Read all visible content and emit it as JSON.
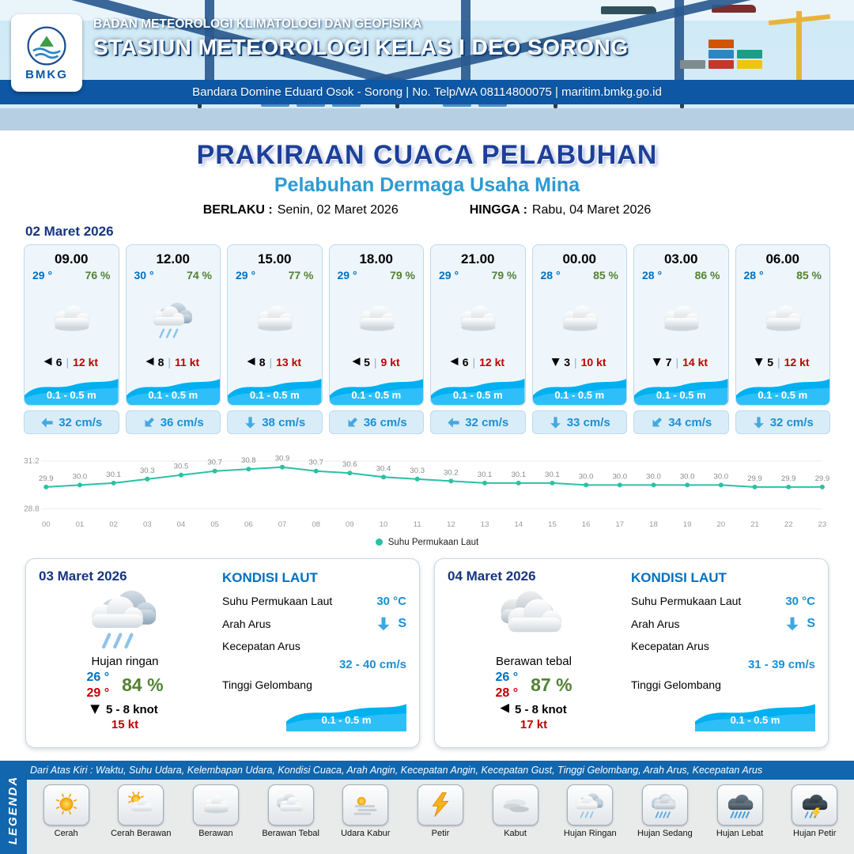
{
  "colors": {
    "band_blue": "#1166ad",
    "strip_blue": "#0d57a4",
    "navy": "#16357f",
    "title_blue": "#1c3f9a",
    "subtitle_blue": "#2e9ad2",
    "temp_blue": "#0070c0",
    "temp_max_red": "#c00000",
    "humidity_green": "#538135",
    "gust_red": "#c00000",
    "wave_blue": "#00b0f0",
    "current_blue": "#1d8fd1",
    "chart_teal": "#2cc0a5"
  },
  "header": {
    "logo": "BMKG",
    "agency": "BADAN METEOROLOGI KLIMATOLOGI DAN GEOFISIKA",
    "station": "STASIUN METEOROLOGI KELAS I DEO SORONG",
    "contact": "Bandara Domine Eduard Osok - Sorong | No. Telp/WA 08114800075 | maritim.bmkg.go.id"
  },
  "title": {
    "main": "PRAKIRAAN CUACA PELABUHAN",
    "subtitle": "Pelabuhan Dermaga Usaha Mina",
    "berlaku_label": "BERLAKU :",
    "berlaku": "Senin, 02 Maret 2026",
    "hingga_label": "HINGGA :",
    "hingga": "Rabu, 04 Maret 2026"
  },
  "day1": {
    "date": "02 Maret 2026",
    "cards": [
      {
        "time": "09.00",
        "temp": "29 °",
        "rh": "76 %",
        "icon": "berawan",
        "wind_deg": 180,
        "wind": "6",
        "gust": "12 kt",
        "wave": "0.1 - 0.5 m",
        "cur_deg": 180,
        "current": "32 cm/s"
      },
      {
        "time": "12.00",
        "temp": "30 °",
        "rh": "74 %",
        "icon": "hujan-ringan",
        "wind_deg": 180,
        "wind": "8",
        "gust": "11 kt",
        "wave": "0.1 - 0.5 m",
        "cur_deg": 135,
        "current": "36 cm/s"
      },
      {
        "time": "15.00",
        "temp": "29 °",
        "rh": "77 %",
        "icon": "berawan",
        "wind_deg": 180,
        "wind": "8",
        "gust": "13 kt",
        "wave": "0.1 - 0.5 m",
        "cur_deg": 90,
        "current": "38 cm/s"
      },
      {
        "time": "18.00",
        "temp": "29 °",
        "rh": "79 %",
        "icon": "berawan",
        "wind_deg": 180,
        "wind": "5",
        "gust": "9 kt",
        "wave": "0.1 - 0.5 m",
        "cur_deg": 135,
        "current": "36 cm/s"
      },
      {
        "time": "21.00",
        "temp": "29 °",
        "rh": "79 %",
        "icon": "berawan",
        "wind_deg": 180,
        "wind": "6",
        "gust": "12 kt",
        "wave": "0.1 - 0.5 m",
        "cur_deg": 180,
        "current": "32 cm/s"
      },
      {
        "time": "00.00",
        "temp": "28 °",
        "rh": "85 %",
        "icon": "berawan",
        "wind_deg": 90,
        "wind": "3",
        "gust": "10 kt",
        "wave": "0.1 - 0.5 m",
        "cur_deg": 90,
        "current": "33 cm/s"
      },
      {
        "time": "03.00",
        "temp": "28 °",
        "rh": "86 %",
        "icon": "berawan",
        "wind_deg": 90,
        "wind": "7",
        "gust": "14 kt",
        "wave": "0.1 - 0.5 m",
        "cur_deg": 135,
        "current": "34 cm/s"
      },
      {
        "time": "06.00",
        "temp": "28 °",
        "rh": "85 %",
        "icon": "berawan",
        "wind_deg": 90,
        "wind": "5",
        "gust": "12 kt",
        "wave": "0.1 - 0.5 m",
        "cur_deg": 90,
        "current": "32 cm/s"
      }
    ]
  },
  "chart_data": {
    "type": "line",
    "series_name": "Suhu Permukaan Laut",
    "x": [
      "00",
      "01",
      "02",
      "03",
      "04",
      "05",
      "06",
      "07",
      "08",
      "09",
      "10",
      "11",
      "12",
      "13",
      "14",
      "15",
      "16",
      "17",
      "18",
      "19",
      "20",
      "21",
      "22",
      "23"
    ],
    "values": [
      29.9,
      30.0,
      30.1,
      30.3,
      30.5,
      30.7,
      30.8,
      30.9,
      30.7,
      30.6,
      30.4,
      30.3,
      30.2,
      30.1,
      30.1,
      30.1,
      30.0,
      30.0,
      30.0,
      30.0,
      30.0,
      29.9,
      29.9,
      29.9
    ],
    "ylim": [
      28.8,
      31.2
    ],
    "line_color": "#2cc0a5",
    "grid": false,
    "legend_position": "bottom"
  },
  "day2": {
    "date": "03 Maret 2026",
    "icon": "hujan-ringan",
    "condition": "Hujan ringan",
    "temp_min": "26 °",
    "temp_max": "29 °",
    "rh": "84 %",
    "wind_deg": 90,
    "wind": "5 - 8 knot",
    "gust": "15 kt",
    "sea": {
      "title": "KONDISI LAUT",
      "sst_label": "Suhu Permukaan Laut",
      "sst": "30 °C",
      "arah_label": "Arah Arus",
      "arah": "S",
      "arah_deg": 90,
      "kec_label": "Kecepatan Arus",
      "kec": "32 - 40 cm/s",
      "gel_label": "Tinggi Gelombang",
      "gel": "0.1 - 0.5 m"
    }
  },
  "day3": {
    "date": "04 Maret 2026",
    "icon": "berawan-tebal",
    "condition": "Berawan tebal",
    "temp_min": "26 °",
    "temp_max": "28 °",
    "rh": "87 %",
    "wind_deg": 180,
    "wind": "5 - 8 knot",
    "gust": "17 kt",
    "sea": {
      "title": "KONDISI LAUT",
      "sst_label": "Suhu Permukaan Laut",
      "sst": "30 °C",
      "arah_label": "Arah Arus",
      "arah": "S",
      "arah_deg": 90,
      "kec_label": "Kecepatan Arus",
      "kec": "31 - 39 cm/s",
      "gel_label": "Tinggi Gelombang",
      "gel": "0.1 - 0.5 m"
    }
  },
  "legend": {
    "title": "LEGENDA",
    "description": "Dari Atas Kiri : Waktu, Suhu Udara, Kelembapan Udara, Kondisi Cuaca, Arah Angin, Kecepatan Angin, Kecepatan Gust, Tinggi Gelombang, Arah Arus, Kecepatan Arus",
    "items": [
      {
        "icon": "cerah",
        "label": "Cerah"
      },
      {
        "icon": "cerah-berawan",
        "label": "Cerah Berawan"
      },
      {
        "icon": "berawan",
        "label": "Berawan"
      },
      {
        "icon": "berawan-tebal",
        "label": "Berawan Tebal"
      },
      {
        "icon": "udara-kabur",
        "label": "Udara Kabur"
      },
      {
        "icon": "petir",
        "label": "Petir"
      },
      {
        "icon": "kabut",
        "label": "Kabut"
      },
      {
        "icon": "hujan-ringan",
        "label": "Hujan Ringan"
      },
      {
        "icon": "hujan-sedang",
        "label": "Hujan Sedang"
      },
      {
        "icon": "hujan-lebat",
        "label": "Hujan Lebat"
      },
      {
        "icon": "hujan-petir",
        "label": "Hujan Petir"
      }
    ]
  }
}
